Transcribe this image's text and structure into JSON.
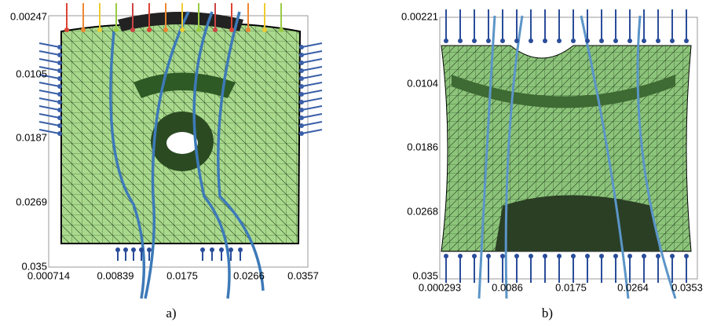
{
  "panels": [
    {
      "caption": "a)",
      "yticks": [
        "0.00247",
        "0.0105",
        "0.0187",
        "0.0269",
        "0.035"
      ],
      "xticks": [
        "0.000714",
        "0.00839",
        "0.0175",
        "0.0266",
        "0.0357"
      ]
    },
    {
      "caption": "b)",
      "yticks": [
        "0.00221",
        "0.0104",
        "0.0186",
        "0.0268",
        "0.035"
      ],
      "xticks": [
        "0.000293",
        "0.0086",
        "0.0175",
        "0.0264",
        "0.0353"
      ]
    }
  ]
}
